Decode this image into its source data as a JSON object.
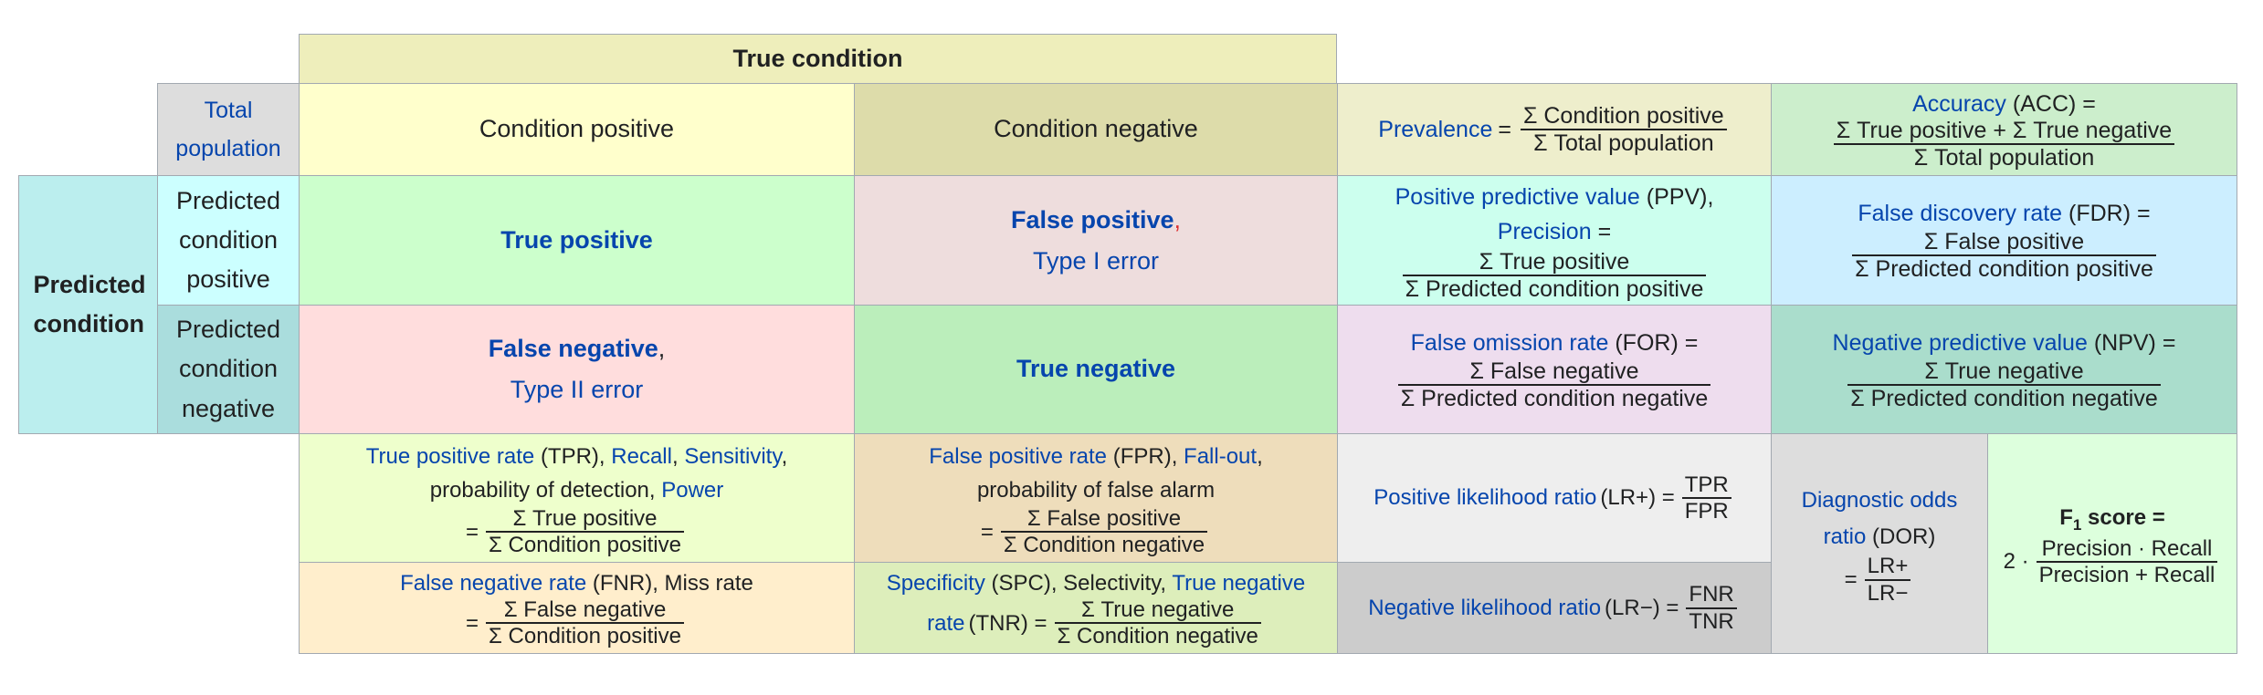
{
  "header": {
    "true_condition": "True condition"
  },
  "total_population": "Total population",
  "predicted_condition": "Predicted condition",
  "columns": {
    "cond_pos": "Condition positive",
    "cond_neg": "Condition negative"
  },
  "rows": {
    "pred_pos": "Predicted condition positive",
    "pred_neg": "Predicted condition negative"
  },
  "cells": {
    "tp": "True positive",
    "fp": "False positive",
    "fp_comma": ",",
    "type1": "Type I error",
    "fn": "False negative",
    "fn_comma": ",",
    "type2": "Type II error",
    "tn": "True negative"
  },
  "prevalence": {
    "label": "Prevalence",
    "eq": "=",
    "num": "Σ Condition positive",
    "den": "Σ Total population"
  },
  "accuracy": {
    "label": "Accuracy",
    "abbr": "(ACC) =",
    "num": "Σ True positive + Σ True negative",
    "den": "Σ Total population"
  },
  "ppv": {
    "label": "Positive predictive value",
    "abbr": "(PPV),",
    "label2": "Precision",
    "eq": "=",
    "num": "Σ True positive",
    "den": "Σ Predicted condition positive"
  },
  "fdr": {
    "label": "False discovery rate",
    "abbr": "(FDR) =",
    "num": "Σ False positive",
    "den": "Σ Predicted condition positive"
  },
  "for": {
    "label": "False omission rate",
    "abbr": "(FOR) =",
    "num": "Σ False negative",
    "den": "Σ Predicted condition negative"
  },
  "npv": {
    "label": "Negative predictive value",
    "abbr": "(NPV) =",
    "num": "Σ True negative",
    "den": "Σ Predicted condition negative"
  },
  "tpr": {
    "label": "True positive rate",
    "abbr": "(TPR),",
    "recall": "Recall",
    "comma1": ",",
    "sensitivity": "Sensitivity",
    "comma2": ",",
    "line2": "probability of detection,",
    "power": "Power",
    "eq": "=",
    "num": "Σ True positive",
    "den": "Σ Condition positive"
  },
  "fpr": {
    "label": "False positive rate",
    "abbr": "(FPR),",
    "fallout": "Fall-out",
    "comma": ",",
    "line2": "probability of false alarm",
    "eq": "=",
    "num": "Σ False positive",
    "den": "Σ Condition negative"
  },
  "fnr": {
    "label": "False negative rate",
    "abbr": "(FNR), Miss rate",
    "eq": "=",
    "num": "Σ False negative",
    "den": "Σ Condition positive"
  },
  "spc": {
    "label": "Specificity",
    "abbr": "(SPC), Selectivity,",
    "tnr1": "True negative",
    "tnr2": "rate",
    "abbr2": "(TNR) =",
    "num": "Σ True negative",
    "den": "Σ Condition negative"
  },
  "lrp": {
    "label": "Positive likelihood ratio",
    "abbr": "(LR+) =",
    "num": "TPR",
    "den": "FPR"
  },
  "lrn": {
    "label": "Negative likelihood ratio",
    "abbr": "(LR−) =",
    "num": "FNR",
    "den": "TNR"
  },
  "dor": {
    "label1": "Diagnostic odds",
    "label2": "ratio",
    "abbr": "(DOR)",
    "eq": "=",
    "num": "LR+",
    "den": "LR−"
  },
  "f1": {
    "label": "F",
    "sub": "1",
    "label2": "score =",
    "prefix": "2 ·",
    "num": "Precision · Recall",
    "den": "Precision + Recall"
  }
}
